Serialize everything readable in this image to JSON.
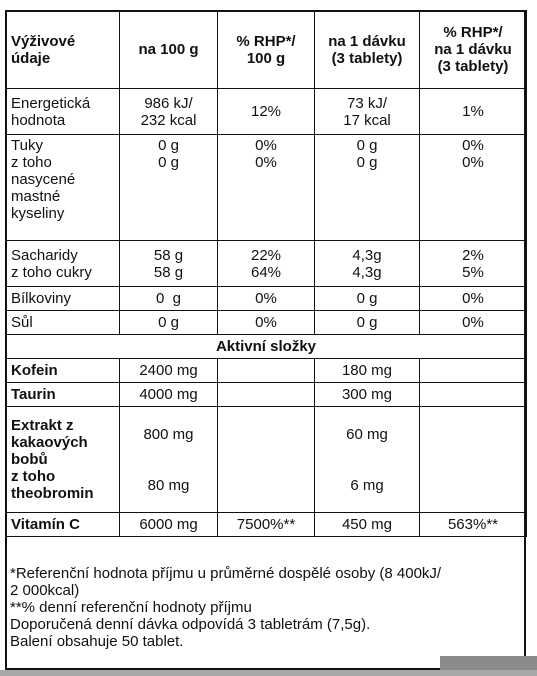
{
  "header": {
    "col1": "Výživové\núdaje",
    "col2": "na 100 g",
    "col3": "% RHP*/\n100 g",
    "col4": "na 1 dávku\n(3 tablety)",
    "col5": "% RHP*/\nna 1 dávku\n(3 tablety)"
  },
  "rows": {
    "energy": {
      "name": "Energetická\nhodnota",
      "per100": "986 kJ/\n232 kcal",
      "rhp100": "12%",
      "dose": "73 kJ/\n17 kcal",
      "rhpdose": "1%"
    },
    "fat": {
      "name": "Tuky\nz toho\nnasycené\nmastné\nkyseliny",
      "per100": "0 g\n0 g",
      "rhp100": "0%\n0%",
      "dose": "0 g\n0 g",
      "rhpdose": "0%\n0%"
    },
    "carbs": {
      "name": "Sacharidy\nz toho cukry",
      "per100": "58 g\n58 g",
      "rhp100": "22%\n64%",
      "dose": "4,3g\n4,3g",
      "rhpdose": "2%\n5%"
    },
    "protein": {
      "name": "Bílkoviny",
      "per100": "0  g",
      "rhp100": "0%",
      "dose": "0 g",
      "rhpdose": "0%"
    },
    "salt": {
      "name": "Sůl",
      "per100": "0 g",
      "rhp100": "0%",
      "dose": "0 g",
      "rhpdose": "0%"
    }
  },
  "active_section": "Aktivní složky",
  "active": {
    "caffeine": {
      "name": "Kofein",
      "per100": "2400 mg",
      "dose": "180 mg"
    },
    "taurine": {
      "name": "Taurin",
      "per100": "4000 mg",
      "dose": "300 mg"
    },
    "cocoa": {
      "name": "Extrakt z\nkakaových\nbobů\nz toho\ntheobromin",
      "per100": "800 mg\n\n\n80 mg",
      "dose": "60 mg\n\n\n6 mg"
    },
    "vitc": {
      "name": "Vitamín C",
      "per100": "6000 mg",
      "rhp100": "7500%**",
      "dose": "450 mg",
      "rhpdose": "563%**"
    }
  },
  "footer": {
    "line1": "*Referenční hodnota příjmu u průměrné dospělé osoby (8 400kJ/\n2 000kcal)",
    "line2": "**% denní referenční hodnoty příjmu",
    "line3": "Doporučená denní dávka odpovídá 3 tabletrám (7,5g).",
    "line4": "Balení obsahuje 50 tablet."
  }
}
